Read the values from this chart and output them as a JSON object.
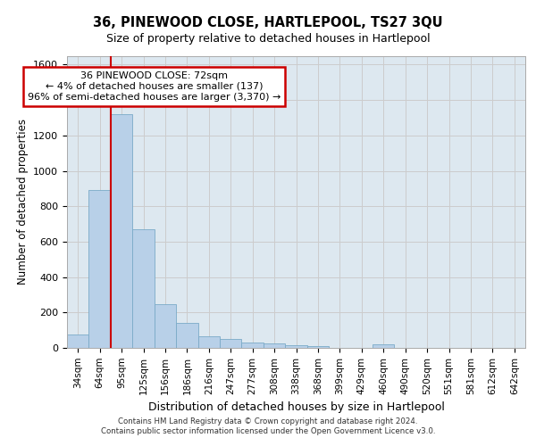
{
  "title": "36, PINEWOOD CLOSE, HARTLEPOOL, TS27 3QU",
  "subtitle": "Size of property relative to detached houses in Hartlepool",
  "xlabel": "Distribution of detached houses by size in Hartlepool",
  "ylabel": "Number of detached properties",
  "categories": [
    "34sqm",
    "64sqm",
    "95sqm",
    "125sqm",
    "156sqm",
    "186sqm",
    "216sqm",
    "247sqm",
    "277sqm",
    "308sqm",
    "338sqm",
    "368sqm",
    "399sqm",
    "429sqm",
    "460sqm",
    "490sqm",
    "520sqm",
    "551sqm",
    "581sqm",
    "612sqm",
    "642sqm"
  ],
  "values": [
    75,
    890,
    1320,
    670,
    245,
    140,
    68,
    50,
    28,
    27,
    15,
    12,
    0,
    0,
    18,
    0,
    0,
    0,
    0,
    0,
    0
  ],
  "bar_color": "#b8d0e8",
  "bar_edge_color": "#7aaac8",
  "vline_color": "#cc0000",
  "vline_x": 1.5,
  "annotation_text": "36 PINEWOOD CLOSE: 72sqm\n← 4% of detached houses are smaller (137)\n96% of semi-detached houses are larger (3,370) →",
  "annotation_box_color": "#ffffff",
  "annotation_box_edge_color": "#cc0000",
  "ylim": [
    0,
    1650
  ],
  "yticks": [
    0,
    200,
    400,
    600,
    800,
    1000,
    1200,
    1400,
    1600
  ],
  "grid_color": "#cccccc",
  "bg_color": "#dde8f0",
  "footer_line1": "Contains HM Land Registry data © Crown copyright and database right 2024.",
  "footer_line2": "Contains public sector information licensed under the Open Government Licence v3.0."
}
